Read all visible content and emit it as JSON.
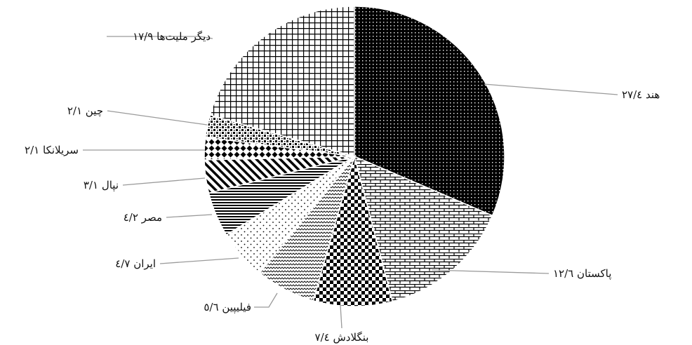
{
  "chart_data": {
    "type": "pie",
    "title": "",
    "slices": [
      {
        "label": "هند",
        "value_text": "۲۷/٤",
        "value": 27.4,
        "pattern": "pat-dots-dark"
      },
      {
        "label": "پاکستان",
        "value_text": "۱۲/٦",
        "value": 12.6,
        "pattern": "pat-brick"
      },
      {
        "label": "بنگلادش",
        "value_text": "۷/٤",
        "value": 7.4,
        "pattern": "pat-checker"
      },
      {
        "label": "فیلیپین",
        "value_text": "٥/٦",
        "value": 5.6,
        "pattern": "pat-wave"
      },
      {
        "label": "ایران",
        "value_text": "٤/۷",
        "value": 4.7,
        "pattern": "pat-dots-sparse"
      },
      {
        "label": "مصر",
        "value_text": "٤/۲",
        "value": 4.2,
        "pattern": "pat-hlines"
      },
      {
        "label": "نپال",
        "value_text": "۳/۱",
        "value": 3.1,
        "pattern": "pat-diag"
      },
      {
        "label": "سریلانکا",
        "value_text": "۲/۱",
        "value": 2.1,
        "pattern": "pat-diamond"
      },
      {
        "label": "چین",
        "value_text": "۲/۱",
        "value": 2.1,
        "pattern": "pat-confetti"
      },
      {
        "label": "دیگر ملیت‌ها",
        "value_text": "۱۷/۹",
        "value": 17.9,
        "pattern": "pat-grid"
      }
    ]
  }
}
